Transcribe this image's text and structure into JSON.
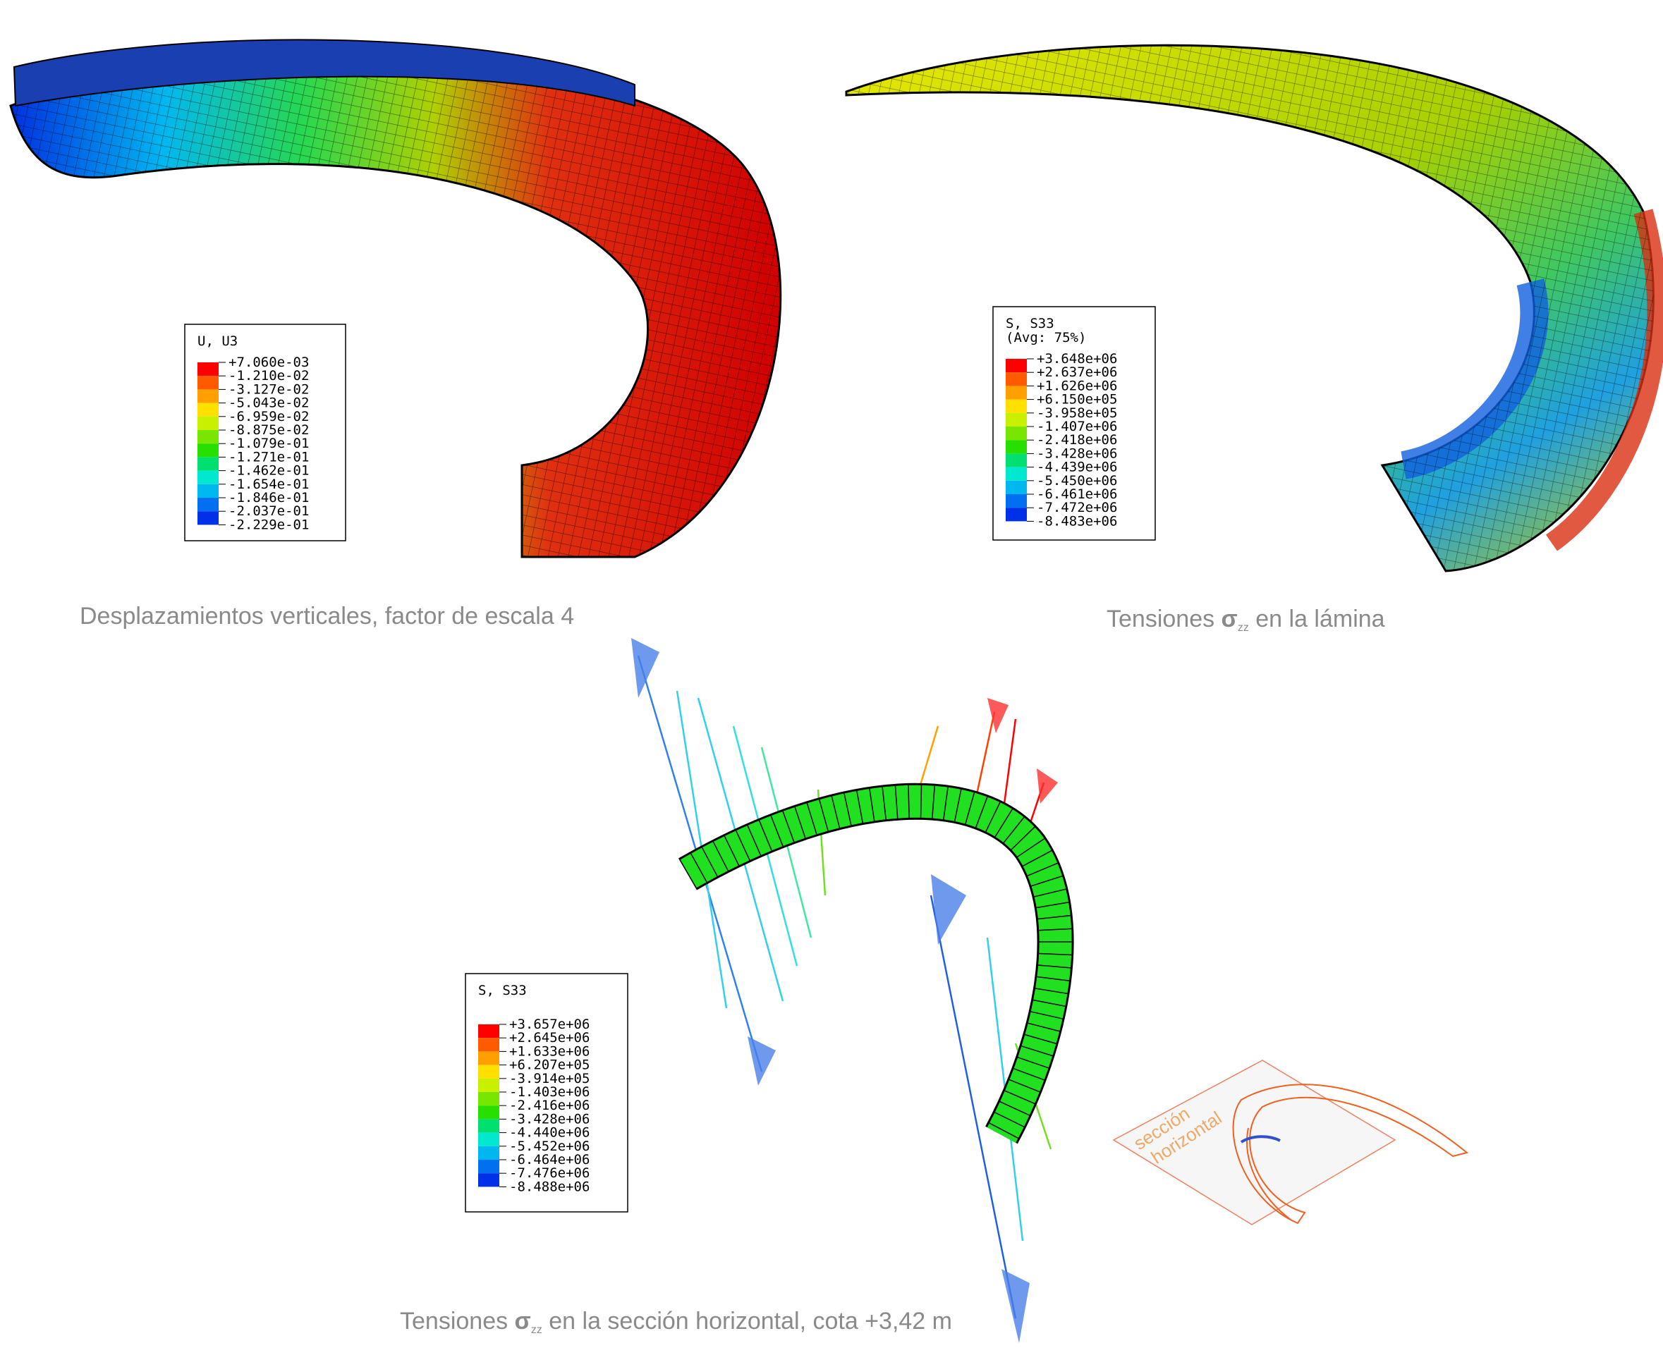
{
  "panels": [
    {
      "legend": {
        "title": [
          "U, U3"
        ],
        "values": [
          "+7.060e-03",
          "-1.210e-02",
          "-3.127e-02",
          "-5.043e-02",
          "-6.959e-02",
          "-8.875e-02",
          "-1.079e-01",
          "-1.271e-01",
          "-1.462e-01",
          "-1.654e-01",
          "-1.846e-01",
          "-2.037e-01",
          "-2.229e-01"
        ]
      },
      "caption": {
        "text": "Desplazamientos verticales, factor de escala 4"
      }
    },
    {
      "legend": {
        "title": [
          "S, S33",
          "(Avg: 75%)"
        ],
        "values": [
          "+3.648e+06",
          "+2.637e+06",
          "+1.626e+06",
          "+6.150e+05",
          "-3.958e+05",
          "-1.407e+06",
          "-2.418e+06",
          "-3.428e+06",
          "-4.439e+06",
          "-5.450e+06",
          "-6.461e+06",
          "-7.472e+06",
          "-8.483e+06"
        ]
      },
      "caption": {
        "before": "Tensiones ",
        "symbol": "σ",
        "subscript": "zz",
        "after": " en la lámina"
      }
    },
    {
      "legend": {
        "title": [
          "S, S33"
        ],
        "values": [
          "+3.657e+06",
          "+2.645e+06",
          "+1.633e+06",
          "+6.207e+05",
          "-3.914e+05",
          "-1.403e+06",
          "-2.416e+06",
          "-3.428e+06",
          "-4.440e+06",
          "-5.452e+06",
          "-6.464e+06",
          "-7.476e+06",
          "-8.488e+06"
        ]
      },
      "caption": {
        "before": "Tensiones ",
        "symbol": "σ",
        "subscript": "zz",
        "after": " en la sección horizontal, cota +3,42 m"
      }
    }
  ],
  "legend_colors": [
    "#ff0000",
    "#ff5a00",
    "#ffa000",
    "#ffe000",
    "#c8f000",
    "#78e600",
    "#28e000",
    "#00e070",
    "#00e8d0",
    "#00b8f0",
    "#0070f0",
    "#0030e8"
  ],
  "inset": {
    "label": [
      "sección",
      "horizontal"
    ]
  }
}
